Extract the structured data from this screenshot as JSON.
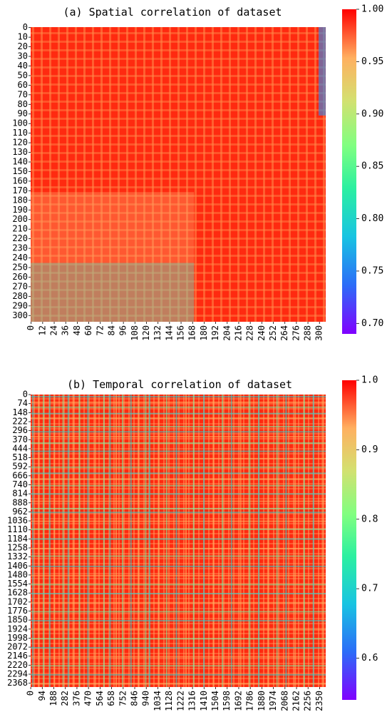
{
  "chart_data": [
    {
      "type": "heatmap",
      "title": "(a) Spatial correlation of dataset",
      "n": 307,
      "x_ticks": [
        "0",
        "12",
        "24",
        "36",
        "48",
        "60",
        "72",
        "84",
        "96",
        "108",
        "120",
        "132",
        "144",
        "156",
        "168",
        "180",
        "192",
        "204",
        "216",
        "228",
        "240",
        "252",
        "264",
        "276",
        "288",
        "300"
      ],
      "y_ticks": [
        "0",
        "10",
        "20",
        "30",
        "40",
        "50",
        "60",
        "70",
        "80",
        "90",
        "100",
        "110",
        "120",
        "130",
        "140",
        "150",
        "160",
        "170",
        "180",
        "190",
        "200",
        "210",
        "220",
        "230",
        "240",
        "250",
        "260",
        "270",
        "280",
        "290",
        "300"
      ],
      "colorbar": {
        "min": 0.69,
        "max": 1.0,
        "ticks": [
          "1.00",
          "0.95",
          "0.90",
          "0.85",
          "0.80",
          "0.75",
          "0.70"
        ],
        "tick_values": [
          1.0,
          0.95,
          0.9,
          0.85,
          0.8,
          0.75,
          0.7
        ]
      },
      "colormap": "rainbow",
      "description_of_values": "mostly 0.95-1.00 near the upper-left block; lower values (0.72-0.85) in bottom-left and right columns; a distinct block boundary near index 170"
    },
    {
      "type": "heatmap",
      "title": "(b) Temporal correlation of dataset",
      "n": 2400,
      "x_ticks": [
        "0",
        "94",
        "188",
        "282",
        "376",
        "470",
        "564",
        "658",
        "752",
        "846",
        "940",
        "1034",
        "1128",
        "1222",
        "1316",
        "1410",
        "1504",
        "1598",
        "1692",
        "1786",
        "1880",
        "1974",
        "2068",
        "2162",
        "2256",
        "2350"
      ],
      "y_ticks": [
        "0",
        "74",
        "148",
        "222",
        "296",
        "370",
        "444",
        "518",
        "592",
        "666",
        "740",
        "814",
        "888",
        "962",
        "1036",
        "1110",
        "1184",
        "1258",
        "1332",
        "1406",
        "1480",
        "1554",
        "1628",
        "1702",
        "1776",
        "1850",
        "1924",
        "1998",
        "2072",
        "2146",
        "2220",
        "2294",
        "2368"
      ],
      "colorbar": {
        "min": 0.54,
        "max": 1.0,
        "ticks": [
          "1.0",
          "0.9",
          "0.8",
          "0.7",
          "0.6"
        ],
        "tick_values": [
          1.0,
          0.9,
          0.8,
          0.7,
          0.6
        ]
      },
      "colormap": "rainbow"
    }
  ]
}
